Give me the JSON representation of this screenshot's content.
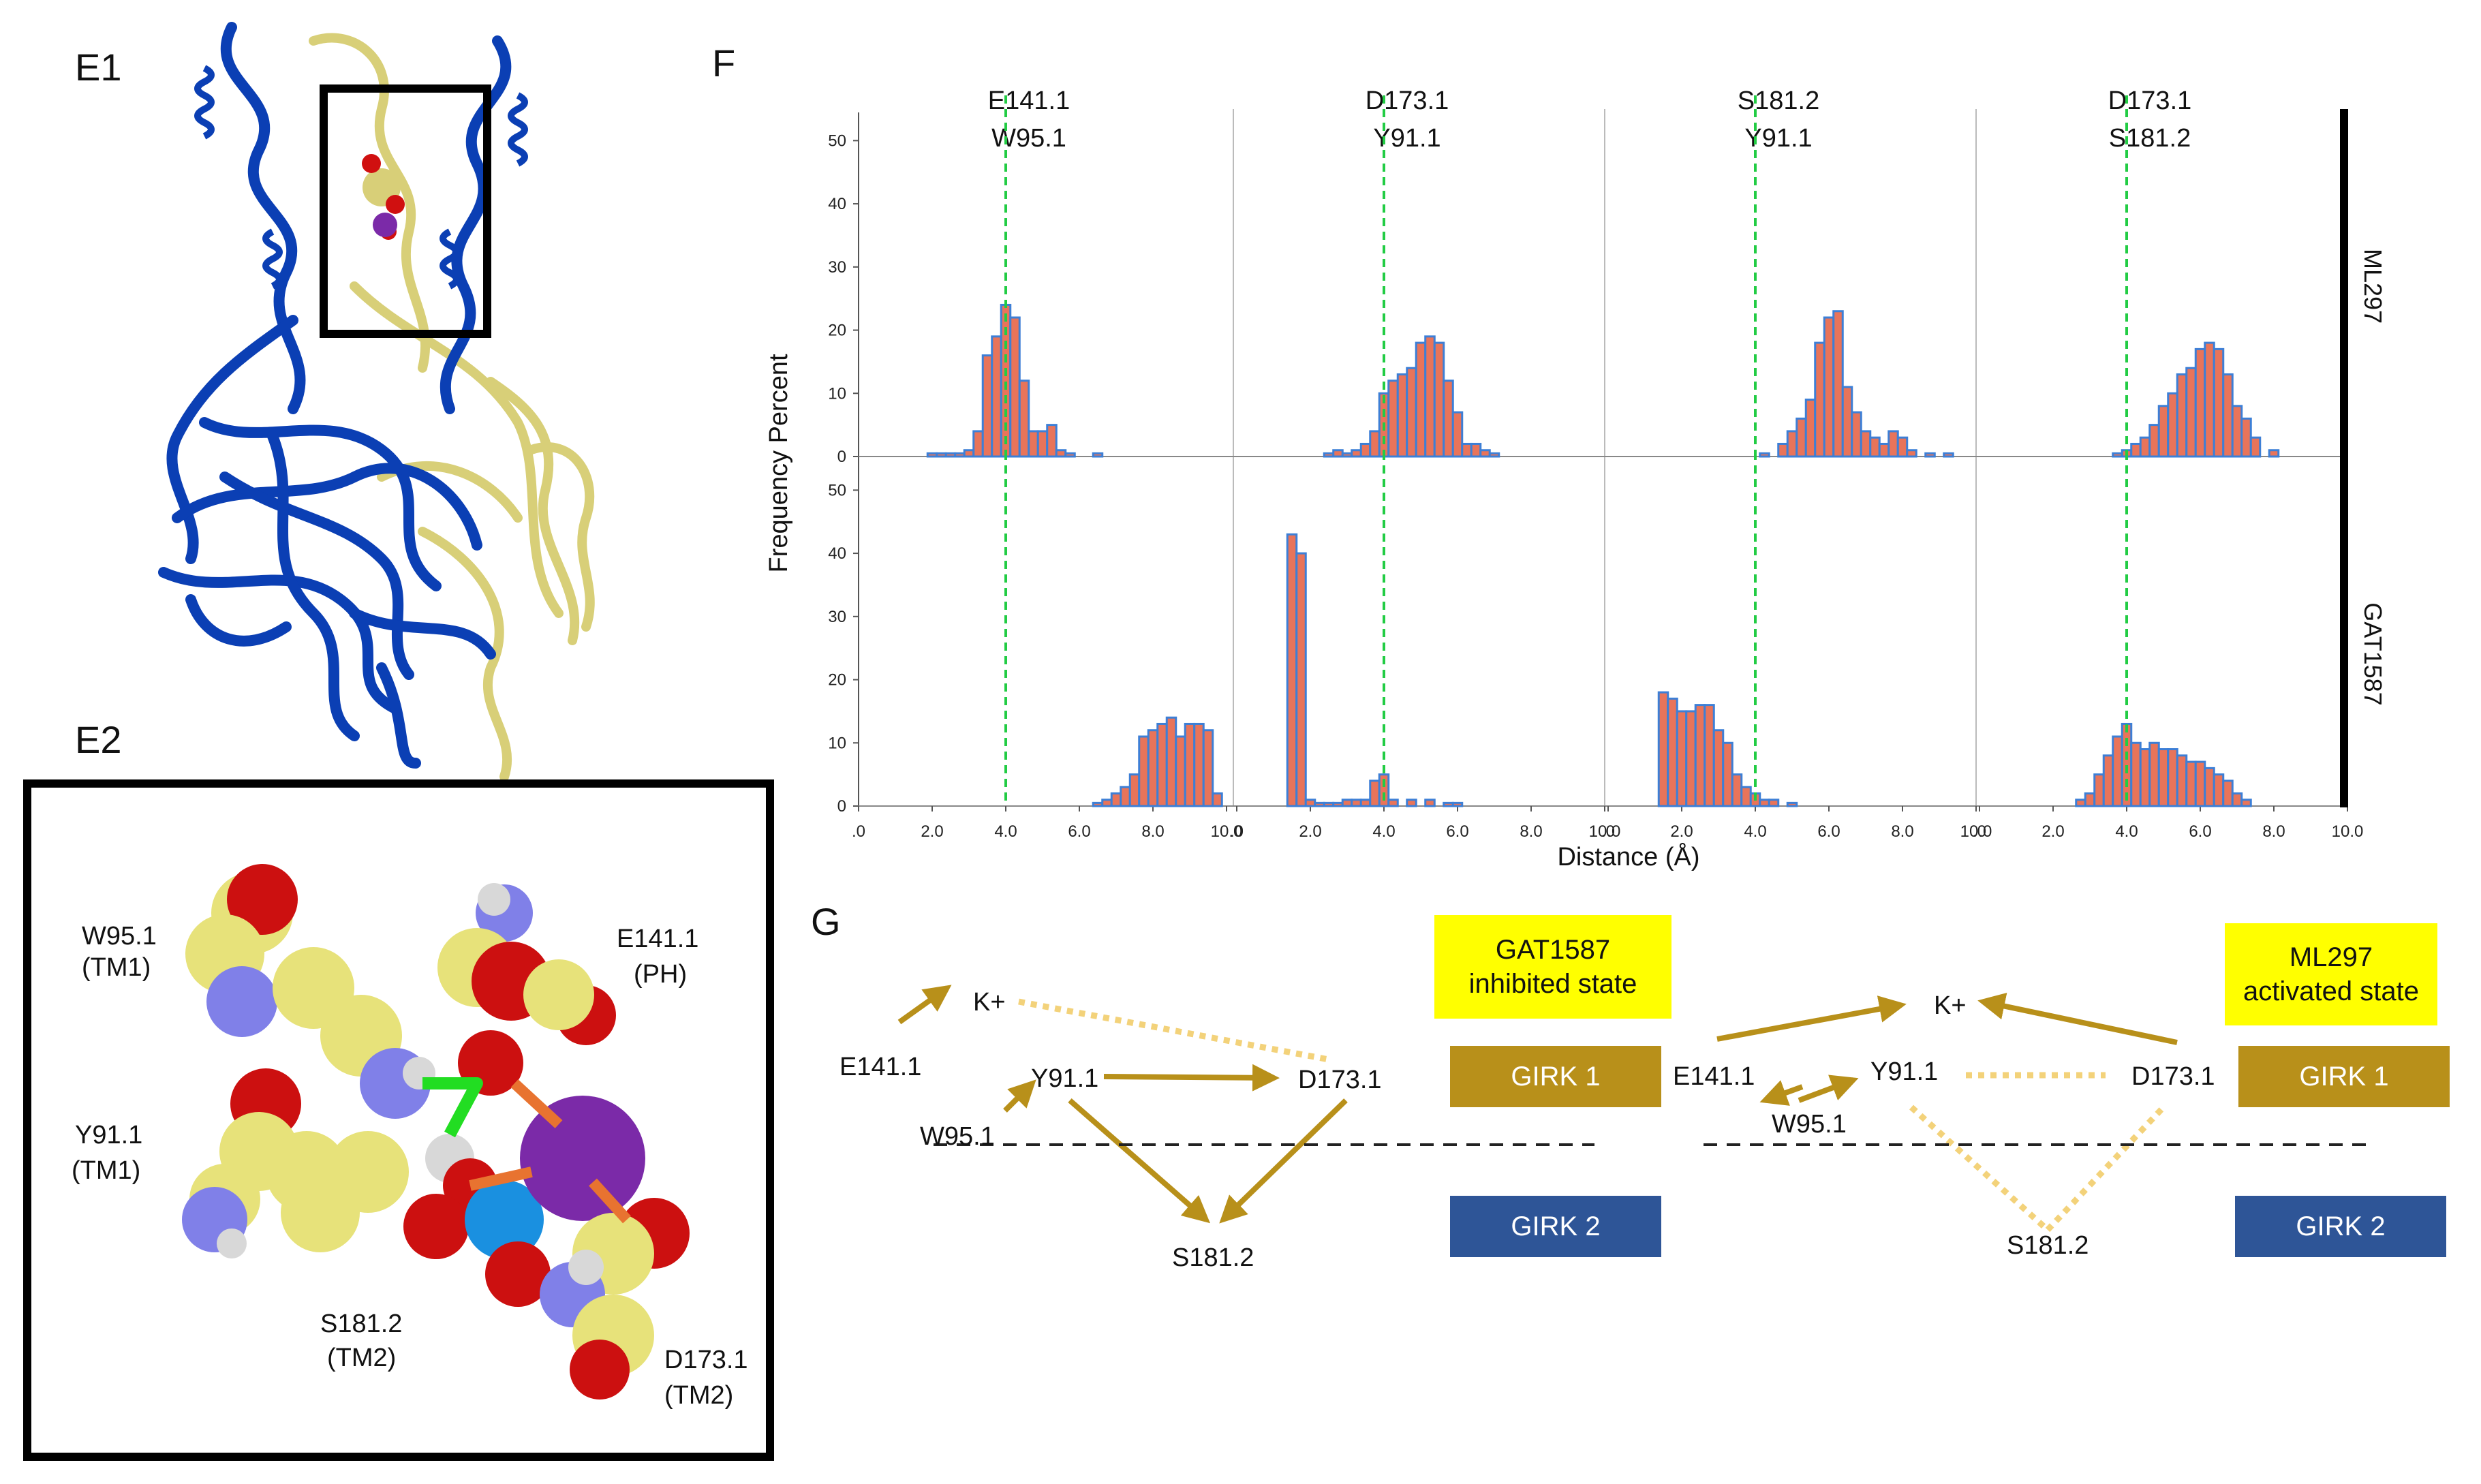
{
  "panels": {
    "e1": "E1",
    "e2": "E2",
    "f": "F",
    "g": "G"
  },
  "colors": {
    "blue_protein": "#0b3fb4",
    "yellow_protein": "#d8cf78",
    "potassium": "#7b2aa8",
    "bar_fill": "#e8745a",
    "bar_edge": "#3d7fd6",
    "green_line": "#22cc44",
    "arrow": "#b8901a",
    "dotted": "#f3d27a",
    "girk1": "#b8901a",
    "girk2": "#2e5597",
    "highlight": "#ffff00"
  },
  "e2_labels": {
    "w95": "W95.1",
    "w95_sub": "(TM1)",
    "e141": "E141.1",
    "e141_sub": "(PH)",
    "y91": "Y91.1",
    "y91_sub": "(TM1)",
    "s181": "S181.2",
    "s181_sub": "(TM2)",
    "d173": "D173.1",
    "d173_sub": "(TM2)"
  },
  "chart_data": {
    "type": "bar",
    "xlabel": "Distance (Å)",
    "ylabel": "Frequency Percent",
    "xlim": [
      0,
      10
    ],
    "ylim": [
      0,
      55
    ],
    "x_ticks": [
      ".0",
      "2.0",
      "4.0",
      "6.0",
      "8.0",
      "10.0"
    ],
    "y_ticks": [
      "0",
      "10",
      "20",
      "30",
      "40",
      "50"
    ],
    "threshold": 4.0,
    "rows": [
      "ML297",
      "GAT1587"
    ],
    "bin_width": 0.25,
    "columns": [
      {
        "label1": "E141.1",
        "label2": "W95.1",
        "series": [
          {
            "name": "ML297",
            "x": [
              2.0,
              2.25,
              2.5,
              2.75,
              3.0,
              3.25,
              3.5,
              3.75,
              4.0,
              4.25,
              4.5,
              4.75,
              5.0,
              5.25,
              5.5,
              5.75,
              6.5
            ],
            "values": [
              0.5,
              0.5,
              0.5,
              0.5,
              1,
              4,
              16,
              19,
              24,
              22,
              12,
              4,
              4,
              5,
              1,
              0.5,
              0.5
            ]
          },
          {
            "name": "GAT1587",
            "x": [
              6.5,
              6.75,
              7.0,
              7.25,
              7.5,
              7.75,
              8.0,
              8.25,
              8.5,
              8.75,
              9.0,
              9.25,
              9.5,
              9.75
            ],
            "values": [
              0.5,
              1,
              2,
              3,
              5,
              11,
              12,
              13,
              14,
              11,
              13,
              13,
              12,
              2
            ]
          }
        ]
      },
      {
        "label1": "D173.1",
        "label2": "Y91.1",
        "series": [
          {
            "name": "ML297",
            "x": [
              2.5,
              2.75,
              3.0,
              3.25,
              3.5,
              3.75,
              4.0,
              4.25,
              4.5,
              4.75,
              5.0,
              5.25,
              5.5,
              5.75,
              6.0,
              6.25,
              6.5,
              6.75,
              7.0
            ],
            "values": [
              0.5,
              1,
              0.5,
              1,
              2,
              4,
              10,
              12,
              13,
              14,
              18,
              19,
              18,
              12,
              7,
              2,
              2,
              1,
              0.5
            ]
          },
          {
            "name": "GAT1587",
            "x": [
              1.5,
              1.75,
              2.0,
              2.25,
              2.5,
              2.75,
              3.0,
              3.25,
              3.5,
              3.75,
              4.0,
              4.25,
              4.75,
              5.25,
              5.75,
              6.0
            ],
            "values": [
              43,
              40,
              1,
              0.5,
              0.5,
              0.5,
              1,
              1,
              1,
              4,
              5,
              1,
              1,
              1,
              0.5,
              0.5
            ]
          }
        ]
      },
      {
        "label1": "S181.2",
        "label2": "Y91.1",
        "series": [
          {
            "name": "ML297",
            "x": [
              4.25,
              4.75,
              5.0,
              5.25,
              5.5,
              5.75,
              6.0,
              6.25,
              6.5,
              6.75,
              7.0,
              7.25,
              7.5,
              7.75,
              8.0,
              8.25,
              8.75,
              9.25
            ],
            "values": [
              0.5,
              2,
              4,
              6,
              9,
              18,
              22,
              23,
              11,
              7,
              4,
              3,
              2,
              4,
              3,
              1,
              0.5,
              0.5
            ]
          },
          {
            "name": "GAT1587",
            "x": [
              1.5,
              1.75,
              2.0,
              2.25,
              2.5,
              2.75,
              3.0,
              3.25,
              3.5,
              3.75,
              4.0,
              4.25,
              4.5,
              5.0
            ],
            "values": [
              18,
              17,
              15,
              15,
              16,
              16,
              12,
              10,
              5,
              3,
              2,
              1,
              1,
              0.5
            ]
          }
        ]
      },
      {
        "label1": "D173.1",
        "label2": "S181.2",
        "series": [
          {
            "name": "ML297",
            "x": [
              3.75,
              4.0,
              4.25,
              4.5,
              4.75,
              5.0,
              5.25,
              5.5,
              5.75,
              6.0,
              6.25,
              6.5,
              6.75,
              7.0,
              7.25,
              7.5,
              8.0
            ],
            "values": [
              0.5,
              1,
              2,
              3,
              5,
              8,
              10,
              13,
              14,
              17,
              18,
              17,
              13,
              8,
              6,
              3,
              1
            ]
          },
          {
            "name": "GAT1587",
            "x": [
              2.75,
              3.0,
              3.25,
              3.5,
              3.75,
              4.0,
              4.25,
              4.5,
              4.75,
              5.0,
              5.25,
              5.5,
              5.75,
              6.0,
              6.25,
              6.5,
              6.75,
              7.0,
              7.25
            ],
            "values": [
              1,
              2,
              5,
              8,
              11,
              13,
              10,
              9,
              10,
              9,
              9,
              8,
              7,
              7,
              6,
              5,
              4,
              2,
              1
            ]
          }
        ]
      }
    ]
  },
  "g": {
    "left": {
      "kplus": "K+",
      "e141": "E141.1",
      "y91": "Y91.1",
      "d173": "D173.1",
      "w95": "W95.1",
      "s181": "S181.2"
    },
    "right": {
      "kplus": "K+",
      "e141": "E141.1",
      "y91": "Y91.1",
      "d173": "D173.1",
      "w95": "W95.1",
      "s181": "S181.2"
    },
    "boxes": {
      "gat_line1": "GAT1587",
      "gat_line2": "inhibited state",
      "ml_line1": "ML297",
      "ml_line2": "activated state",
      "girk1": "GIRK 1",
      "girk2": "GIRK 2"
    }
  }
}
